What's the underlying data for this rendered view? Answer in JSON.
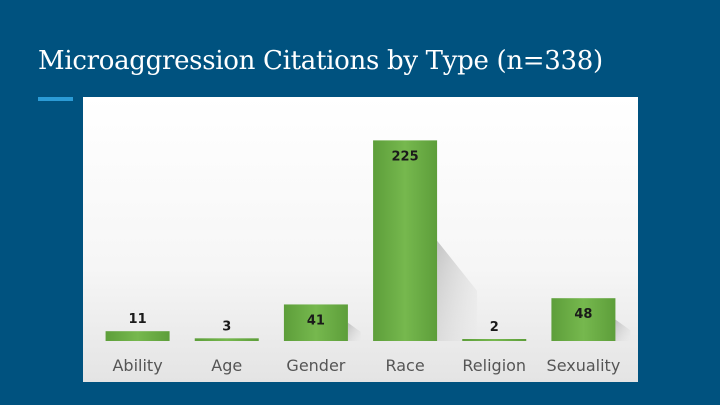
{
  "slide": {
    "title": "Microaggression Citations by Type (n=338)",
    "background_color": "#00527f",
    "accent_color": "#2b9bd6"
  },
  "chart_data": {
    "type": "bar",
    "categories": [
      "Ability",
      "Age",
      "Gender",
      "Race",
      "Religion",
      "Sexuality"
    ],
    "values": [
      11,
      3,
      41,
      225,
      2,
      48
    ],
    "data_labels": [
      "11",
      "3",
      "41",
      "225",
      "2",
      "48"
    ],
    "ylim": [
      0,
      240
    ],
    "grid": false,
    "legend": "none",
    "bar_color": "#6aab44"
  }
}
